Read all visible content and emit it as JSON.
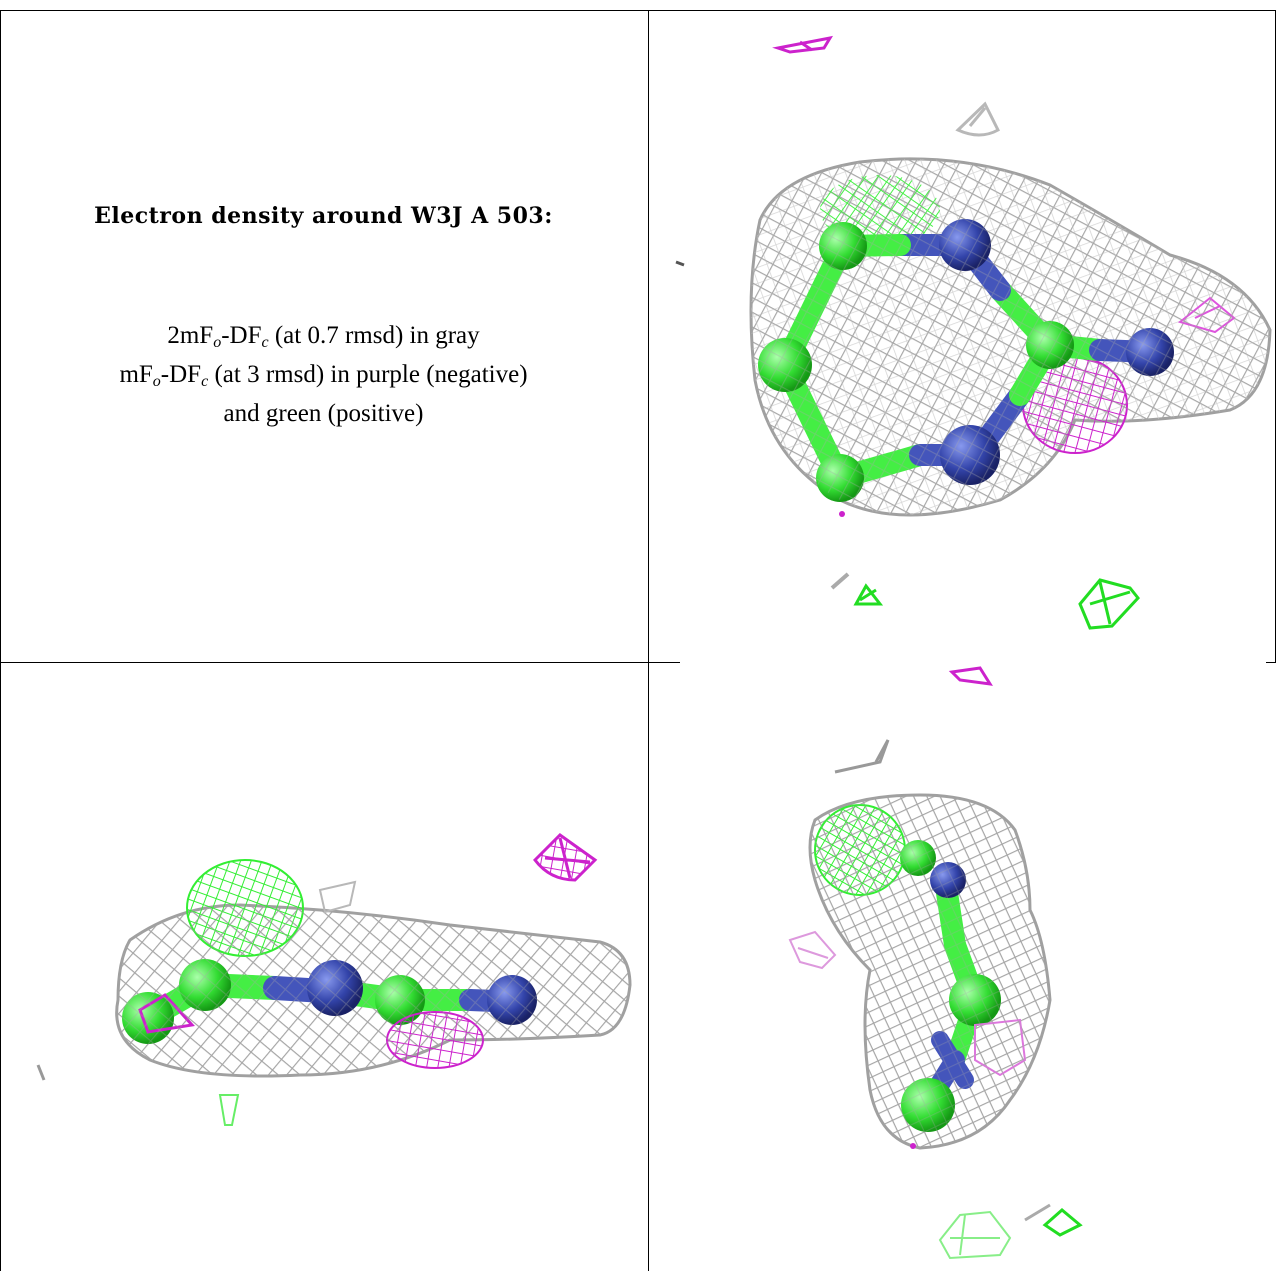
{
  "caption": {
    "title": "Electron density around W3J A 503:",
    "line1_prefix": "2mF",
    "line1_sub_o": "o",
    "line1_mid": "-DF",
    "line1_sub_c": "c",
    "line1_suffix": " (at 0.7 rmsd) in gray",
    "line2_prefix": "mF",
    "line2_sub_o": "o",
    "line2_mid": "-DF",
    "line2_sub_c": "c",
    "line2_suffix": " (at 3 rmsd) in purple (negative)",
    "line3": "and green (positive)"
  },
  "colors": {
    "mesh_gray": "#b0b0b0",
    "negative_purple": "#cc22cc",
    "positive_green": "#33ee33",
    "atom_green": "#44ee44",
    "atom_blue": "#4455bb",
    "frame": "#000000"
  },
  "panels": [
    {
      "id": "top-right",
      "view": "face-on view"
    },
    {
      "id": "bottom-left",
      "view": "edge-on view"
    },
    {
      "id": "bottom-right",
      "view": "side view"
    }
  ]
}
